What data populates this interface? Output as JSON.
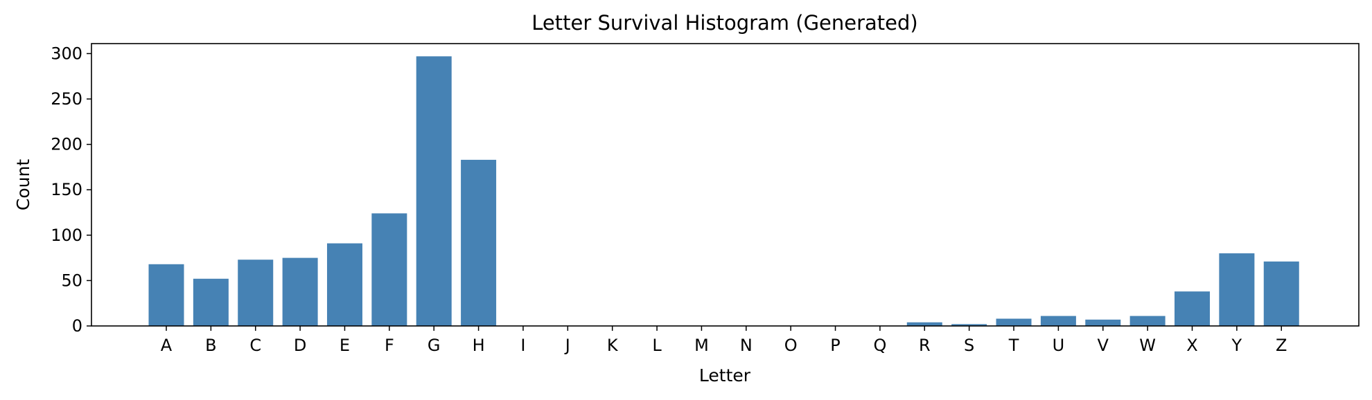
{
  "chart_data": {
    "type": "bar",
    "title": "Letter Survival Histogram (Generated)",
    "xlabel": "Letter",
    "ylabel": "Count",
    "categories": [
      "A",
      "B",
      "C",
      "D",
      "E",
      "F",
      "G",
      "H",
      "I",
      "J",
      "K",
      "L",
      "M",
      "N",
      "O",
      "P",
      "Q",
      "R",
      "S",
      "T",
      "U",
      "V",
      "W",
      "X",
      "Y",
      "Z"
    ],
    "values": [
      68,
      52,
      73,
      75,
      91,
      124,
      297,
      183,
      0,
      0,
      0,
      0,
      0,
      0,
      0,
      0,
      0,
      4,
      2,
      8,
      11,
      7,
      11,
      38,
      80,
      71
    ],
    "ylim": [
      0,
      311
    ],
    "yticks": [
      0,
      50,
      100,
      150,
      200,
      250,
      300
    ],
    "bar_color": "#4682b4",
    "grid": false,
    "legend": "none"
  }
}
